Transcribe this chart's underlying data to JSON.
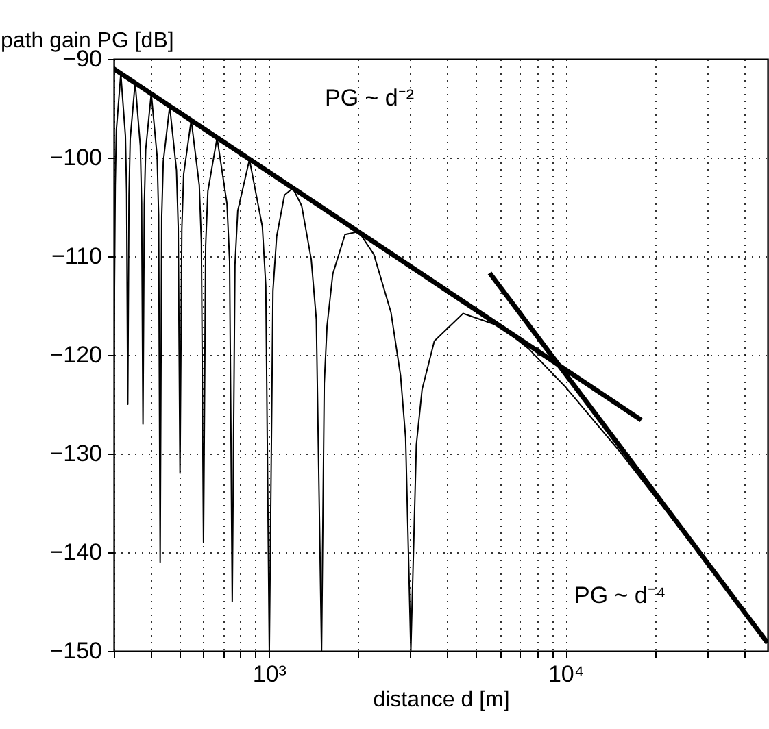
{
  "chart_data": {
    "type": "line",
    "xlabel": "distance d [m]",
    "ylabel": "path gain PG [dB]",
    "log": "x",
    "grid": true,
    "xlim": [
      300,
      48000
    ],
    "ylim": [
      -150,
      -90
    ],
    "xticks": [
      {
        "value": 300,
        "label": null
      },
      {
        "value": 400,
        "label": null
      },
      {
        "value": 500,
        "label": null
      },
      {
        "value": 600,
        "label": null
      },
      {
        "value": 700,
        "label": null
      },
      {
        "value": 800,
        "label": null
      },
      {
        "value": 900,
        "label": null
      },
      {
        "value": 1000,
        "label": "10³"
      },
      {
        "value": 2000,
        "label": null
      },
      {
        "value": 3000,
        "label": null
      },
      {
        "value": 4000,
        "label": null
      },
      {
        "value": 5000,
        "label": null
      },
      {
        "value": 6000,
        "label": null
      },
      {
        "value": 7000,
        "label": null
      },
      {
        "value": 8000,
        "label": null
      },
      {
        "value": 9000,
        "label": null
      },
      {
        "value": 10000,
        "label": "10⁴"
      },
      {
        "value": 20000,
        "label": null
      },
      {
        "value": 30000,
        "label": null
      },
      {
        "value": 40000,
        "label": null
      }
    ],
    "yticks": [
      -150,
      -140,
      -130,
      -120,
      -110,
      -100,
      -90
    ],
    "series": [
      {
        "color": "#000000",
        "x": [
          300,
          303.5,
          306.1,
          316.8,
          328.4,
          331.4,
          334.4,
          337.6,
          340.8,
          354.1,
          368.6,
          372.4,
          376.3,
          380.2,
          384.3,
          401.3,
          420,
          424.9,
          430,
          435.2,
          440.5,
          463.1,
          488.1,
          494.8,
          501.7,
          508.7,
          516,
          547.3,
          582.6,
          592.1,
          602,
          612.2,
          622.8,
          668.9,
          722.4,
          737.1,
          752.5,
          768.5,
          785.2,
          860,
          950.5,
          976.2,
          1003.3,
          1032,
          1062,
          1128.7,
          1204,
          1290,
          1389,
          1444.8,
          1505,
          1537,
          1570,
          1642,
          1806,
          2007,
          2258,
          2580,
          2779,
          2890,
          3010,
          3141,
          3284,
          3612,
          4515,
          6020,
          7525,
          10033,
          15050,
          20067,
          30100,
          43000
        ],
        "values": [
          -122,
          -102.8,
          -97.2,
          -91.5,
          -97.8,
          -103.6,
          -125,
          -103.8,
          -98.1,
          -92.4,
          -98.8,
          -104.6,
          -127,
          -104.8,
          -99.2,
          -93.5,
          -99.9,
          -105.8,
          -141,
          -106,
          -100.4,
          -94.8,
          -101.3,
          -107.1,
          -132,
          -107.3,
          -101.7,
          -96.2,
          -102.8,
          -108.6,
          -139,
          -108.9,
          -103.4,
          -98,
          -104.7,
          -110.5,
          -145,
          -110.9,
          -105.4,
          -100.2,
          -107,
          -113,
          -150,
          -113.5,
          -108,
          -103.8,
          -103.1,
          -104.9,
          -110.3,
          -116.4,
          -150,
          -122.9,
          -117.1,
          -111.8,
          -107.8,
          -107.5,
          -109.8,
          -115.7,
          -122.1,
          -128.4,
          -150,
          -129.1,
          -123.5,
          -118.6,
          -115.8,
          -117.1,
          -119.4,
          -123.3,
          -129.6,
          -134.4,
          -141.2,
          -147.4
        ]
      },
      {
        "color": "#000000",
        "x": [
          300,
          18000
        ],
        "values": [
          -91,
          -126.6
        ]
      },
      {
        "color": "#000000",
        "x": [
          5550,
          48000
        ],
        "values": [
          -111.7,
          -149.2
        ]
      }
    ],
    "annotations": [
      "PG ~ d⁻²",
      "PG ~ d⁻⁴"
    ]
  }
}
